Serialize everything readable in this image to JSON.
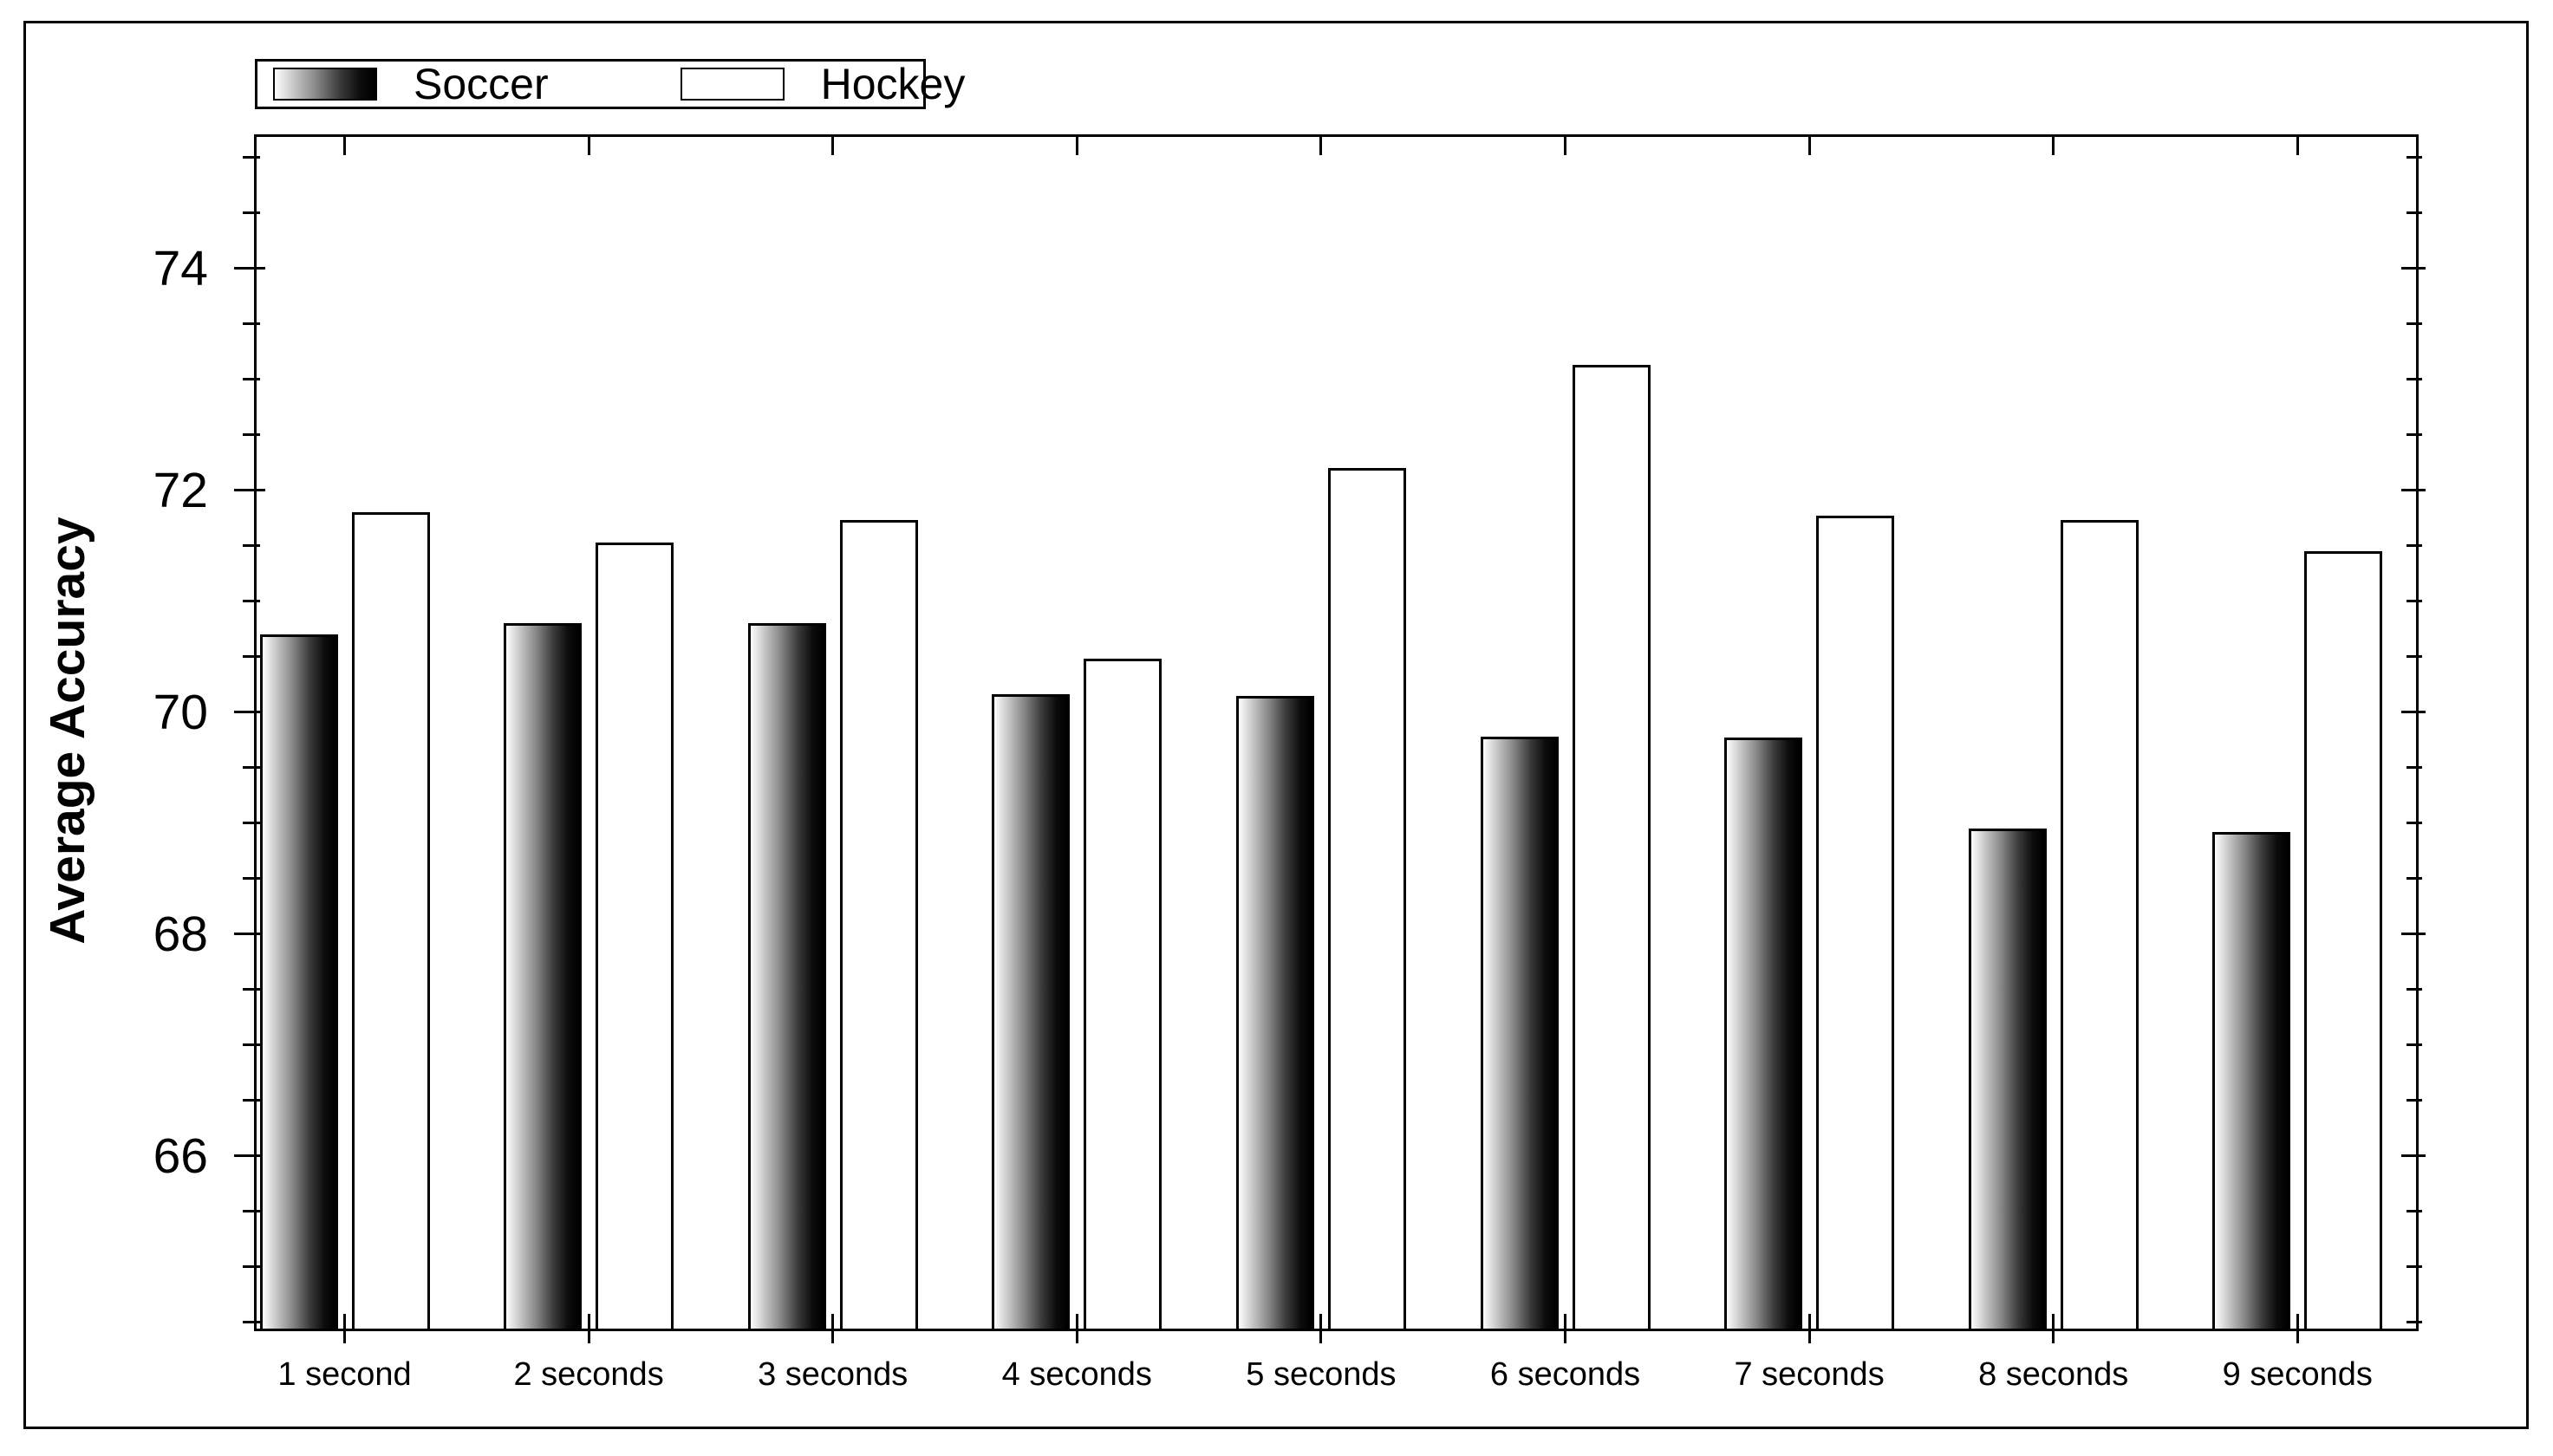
{
  "figure": {
    "background": "#ffffff",
    "border_color": "#000000",
    "title": ""
  },
  "chart_data": {
    "type": "bar",
    "categories": [
      "1 second",
      "2 seconds",
      "3 seconds",
      "4 seconds",
      "5 seconds",
      "6 seconds",
      "7 seconds",
      "8 seconds",
      "9 seconds"
    ],
    "series": [
      {
        "name": "Soccer",
        "style": "black-gradient",
        "values": [
          70.7,
          70.8,
          70.8,
          70.16,
          70.15,
          69.78,
          69.77,
          68.95,
          68.92
        ]
      },
      {
        "name": "Hockey",
        "style": "white",
        "values": [
          71.8,
          71.53,
          71.73,
          70.48,
          72.2,
          73.13,
          71.77,
          71.73,
          71.45
        ]
      }
    ],
    "xlabel": "",
    "ylabel": "Average Accuracy",
    "ylim": [
      64.42,
      75.21
    ],
    "y_major_ticks": [
      66,
      68,
      70,
      72,
      74
    ],
    "y_minor_tick_step": 0.5,
    "grid": false,
    "legend_position": "top-left",
    "bar_outline_color": "#000000"
  }
}
